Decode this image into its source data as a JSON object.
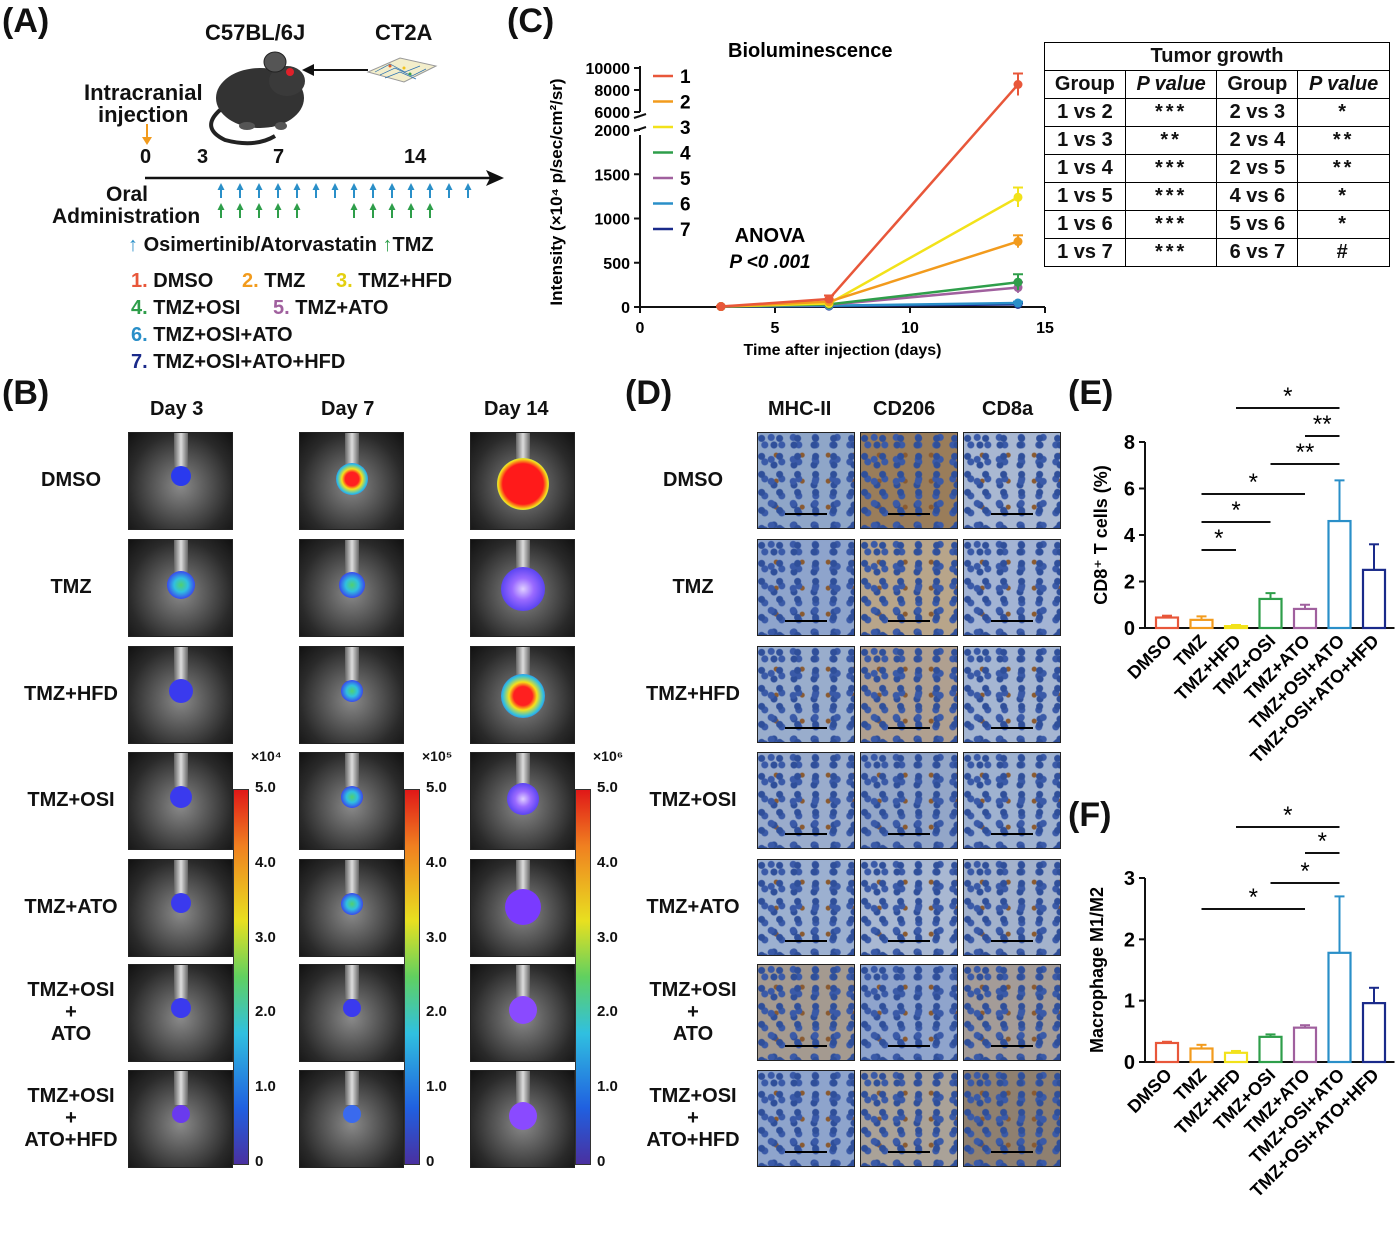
{
  "panels": {
    "a": "(A)",
    "b": "(B)",
    "c": "(C)",
    "d": "(D)",
    "e": "(E)",
    "f": "(F)"
  },
  "panelA": {
    "strain": "C57BL/6J",
    "cells": "CT2A",
    "injection": [
      "Intracranial",
      "injection"
    ],
    "ticks": [
      "0",
      "3",
      "7",
      "14"
    ],
    "oral": [
      "Oral",
      "Administration"
    ],
    "drug_legend_blue": "Osimertinib/Atorvastatin",
    "drug_legend_green": "TMZ",
    "groups": [
      {
        "num": "1.",
        "name": "DMSO",
        "color": "#e8573a"
      },
      {
        "num": "2.",
        "name": "TMZ",
        "color": "#f29b1d"
      },
      {
        "num": "3.",
        "name": "TMZ+HFD",
        "color": "#f2e21a"
      },
      {
        "num": "4.",
        "name": "TMZ+OSI",
        "color": "#2e9e4a"
      },
      {
        "num": "5.",
        "name": "TMZ+ATO",
        "color": "#a0609e"
      },
      {
        "num": "6.",
        "name": "TMZ+OSI+ATO",
        "color": "#2a8fc8"
      },
      {
        "num": "7.",
        "name": "TMZ+OSI+ATO+HFD",
        "color": "#1a2a8a"
      }
    ]
  },
  "panelB": {
    "days": [
      "Day 3",
      "Day 7",
      "Day 14"
    ],
    "rows": [
      [
        "DMSO"
      ],
      [
        "TMZ"
      ],
      [
        "TMZ+HFD"
      ],
      [
        "TMZ+OSI"
      ],
      [
        "TMZ+ATO"
      ],
      [
        "TMZ+OSI",
        "+",
        "ATO"
      ],
      [
        "TMZ+OSI",
        "+",
        "ATO+HFD"
      ]
    ],
    "scale_exponents": [
      "×10⁴",
      "×10⁵",
      "×10⁶"
    ],
    "scale_ticks": [
      "5.0",
      "4.0",
      "3.0",
      "2.0",
      "1.0",
      "0"
    ]
  },
  "panelD": {
    "stains": [
      "MHC-II",
      "CD206",
      "CD8a"
    ],
    "rows": [
      [
        "DMSO"
      ],
      [
        "TMZ"
      ],
      [
        "TMZ+HFD"
      ],
      [
        "TMZ+OSI"
      ],
      [
        "TMZ+ATO"
      ],
      [
        "TMZ+OSI",
        "+",
        "ATO"
      ],
      [
        "TMZ+OSI",
        "+",
        "ATO+HFD"
      ]
    ]
  },
  "table": {
    "title": "Tumor growth",
    "headers": [
      "Group",
      "P value",
      "Group",
      "P value"
    ],
    "rows": [
      [
        "1 vs 2",
        "***",
        "2 vs 3",
        "*"
      ],
      [
        "1 vs 3",
        "**",
        "2 vs 4",
        "**"
      ],
      [
        "1 vs 4",
        "***",
        "2 vs 5",
        "**"
      ],
      [
        "1 vs 5",
        "***",
        "4 vs 6",
        "*"
      ],
      [
        "1 vs 6",
        "***",
        "5 vs 6",
        "*"
      ],
      [
        "1 vs 7",
        "***",
        "6 vs 7",
        "#"
      ]
    ]
  },
  "chart_data": [
    {
      "type": "line",
      "title": "Bioluminescence",
      "xlabel": "Time after injection (days)",
      "ylabel": "Intensity (×10⁴ p/sec/cm²/sr)",
      "x": [
        0,
        3,
        7,
        14
      ],
      "xlim": [
        0,
        15
      ],
      "xticks": [
        "0",
        "5",
        "10",
        "15"
      ],
      "yticks_lower": [
        "0",
        "500",
        "1000",
        "1500",
        "2000"
      ],
      "yticks_upper": [
        "6000",
        "8000",
        "10000"
      ],
      "annotation": [
        "ANOVA",
        "P <0 .001"
      ],
      "legend_labels": [
        "1",
        "2",
        "3",
        "4",
        "5",
        "6",
        "7"
      ],
      "series": [
        {
          "name": "1",
          "color": "#e8573a",
          "values": [
            null,
            5,
            90,
            8500
          ],
          "errors": [
            null,
            3,
            40,
            1000
          ]
        },
        {
          "name": "2",
          "color": "#f29b1d",
          "values": [
            null,
            5,
            60,
            740
          ],
          "errors": [
            null,
            3,
            25,
            70
          ]
        },
        {
          "name": "3",
          "color": "#f2e21a",
          "values": [
            null,
            5,
            40,
            1240
          ],
          "errors": [
            null,
            3,
            20,
            110
          ]
        },
        {
          "name": "4",
          "color": "#2e9e4a",
          "values": [
            null,
            5,
            30,
            280
          ],
          "errors": [
            null,
            3,
            15,
            90
          ]
        },
        {
          "name": "5",
          "color": "#a0609e",
          "values": [
            null,
            5,
            25,
            220
          ],
          "errors": [
            null,
            3,
            15,
            60
          ]
        },
        {
          "name": "6",
          "color": "#2a8fc8",
          "values": [
            null,
            5,
            15,
            45
          ],
          "errors": [
            null,
            3,
            8,
            15
          ]
        },
        {
          "name": "7",
          "color": "#1a2a8a",
          "values": [
            null,
            5,
            10,
            30
          ],
          "errors": [
            null,
            3,
            6,
            10
          ]
        }
      ]
    },
    {
      "type": "bar",
      "ylabel": "CD8⁺ T cells (%)",
      "ylim": [
        0,
        8
      ],
      "yticks": [
        "0",
        "2",
        "4",
        "6",
        "8"
      ],
      "categories": [
        "DMSO",
        "TMZ",
        "TMZ+HFD",
        "TMZ+OSI",
        "TMZ+ATO",
        "TMZ+OSI+ATO",
        "TMZ+OSI+ATO+HFD"
      ],
      "colors": [
        "#e8573a",
        "#f29b1d",
        "#f2e21a",
        "#2e9e4a",
        "#a0609e",
        "#2a8fc8",
        "#1a2a8a"
      ],
      "values": [
        0.45,
        0.35,
        0.08,
        1.25,
        0.82,
        4.6,
        2.5
      ],
      "errors": [
        0.08,
        0.15,
        0.05,
        0.25,
        0.18,
        1.75,
        1.1
      ],
      "significance": [
        {
          "from": 1,
          "to": 2,
          "label": "*"
        },
        {
          "from": 1,
          "to": 3,
          "label": "*"
        },
        {
          "from": 1,
          "to": 4,
          "label": "*"
        },
        {
          "from": 3,
          "to": 5,
          "label": "**"
        },
        {
          "from": 4,
          "to": 5,
          "label": "**"
        },
        {
          "from": 2,
          "to": 5,
          "label": "*"
        }
      ]
    },
    {
      "type": "bar",
      "ylabel": "Macrophage M1/M2",
      "ylim": [
        0,
        3
      ],
      "yticks": [
        "0",
        "1",
        "2",
        "3"
      ],
      "categories": [
        "DMSO",
        "TMZ",
        "TMZ+HFD",
        "TMZ+OSI",
        "TMZ+ATO",
        "TMZ+OSI+ATO",
        "TMZ+OSI+ATO+HFD"
      ],
      "colors": [
        "#e8573a",
        "#f29b1d",
        "#f2e21a",
        "#2e9e4a",
        "#a0609e",
        "#2a8fc8",
        "#1a2a8a"
      ],
      "values": [
        0.31,
        0.22,
        0.15,
        0.41,
        0.56,
        1.78,
        0.96
      ],
      "errors": [
        0.02,
        0.06,
        0.03,
        0.04,
        0.04,
        0.92,
        0.25
      ],
      "significance": [
        {
          "from": 1,
          "to": 4,
          "label": "*"
        },
        {
          "from": 3,
          "to": 5,
          "label": "*"
        },
        {
          "from": 4,
          "to": 5,
          "label": "*"
        },
        {
          "from": 2,
          "to": 5,
          "label": "*"
        }
      ]
    }
  ]
}
